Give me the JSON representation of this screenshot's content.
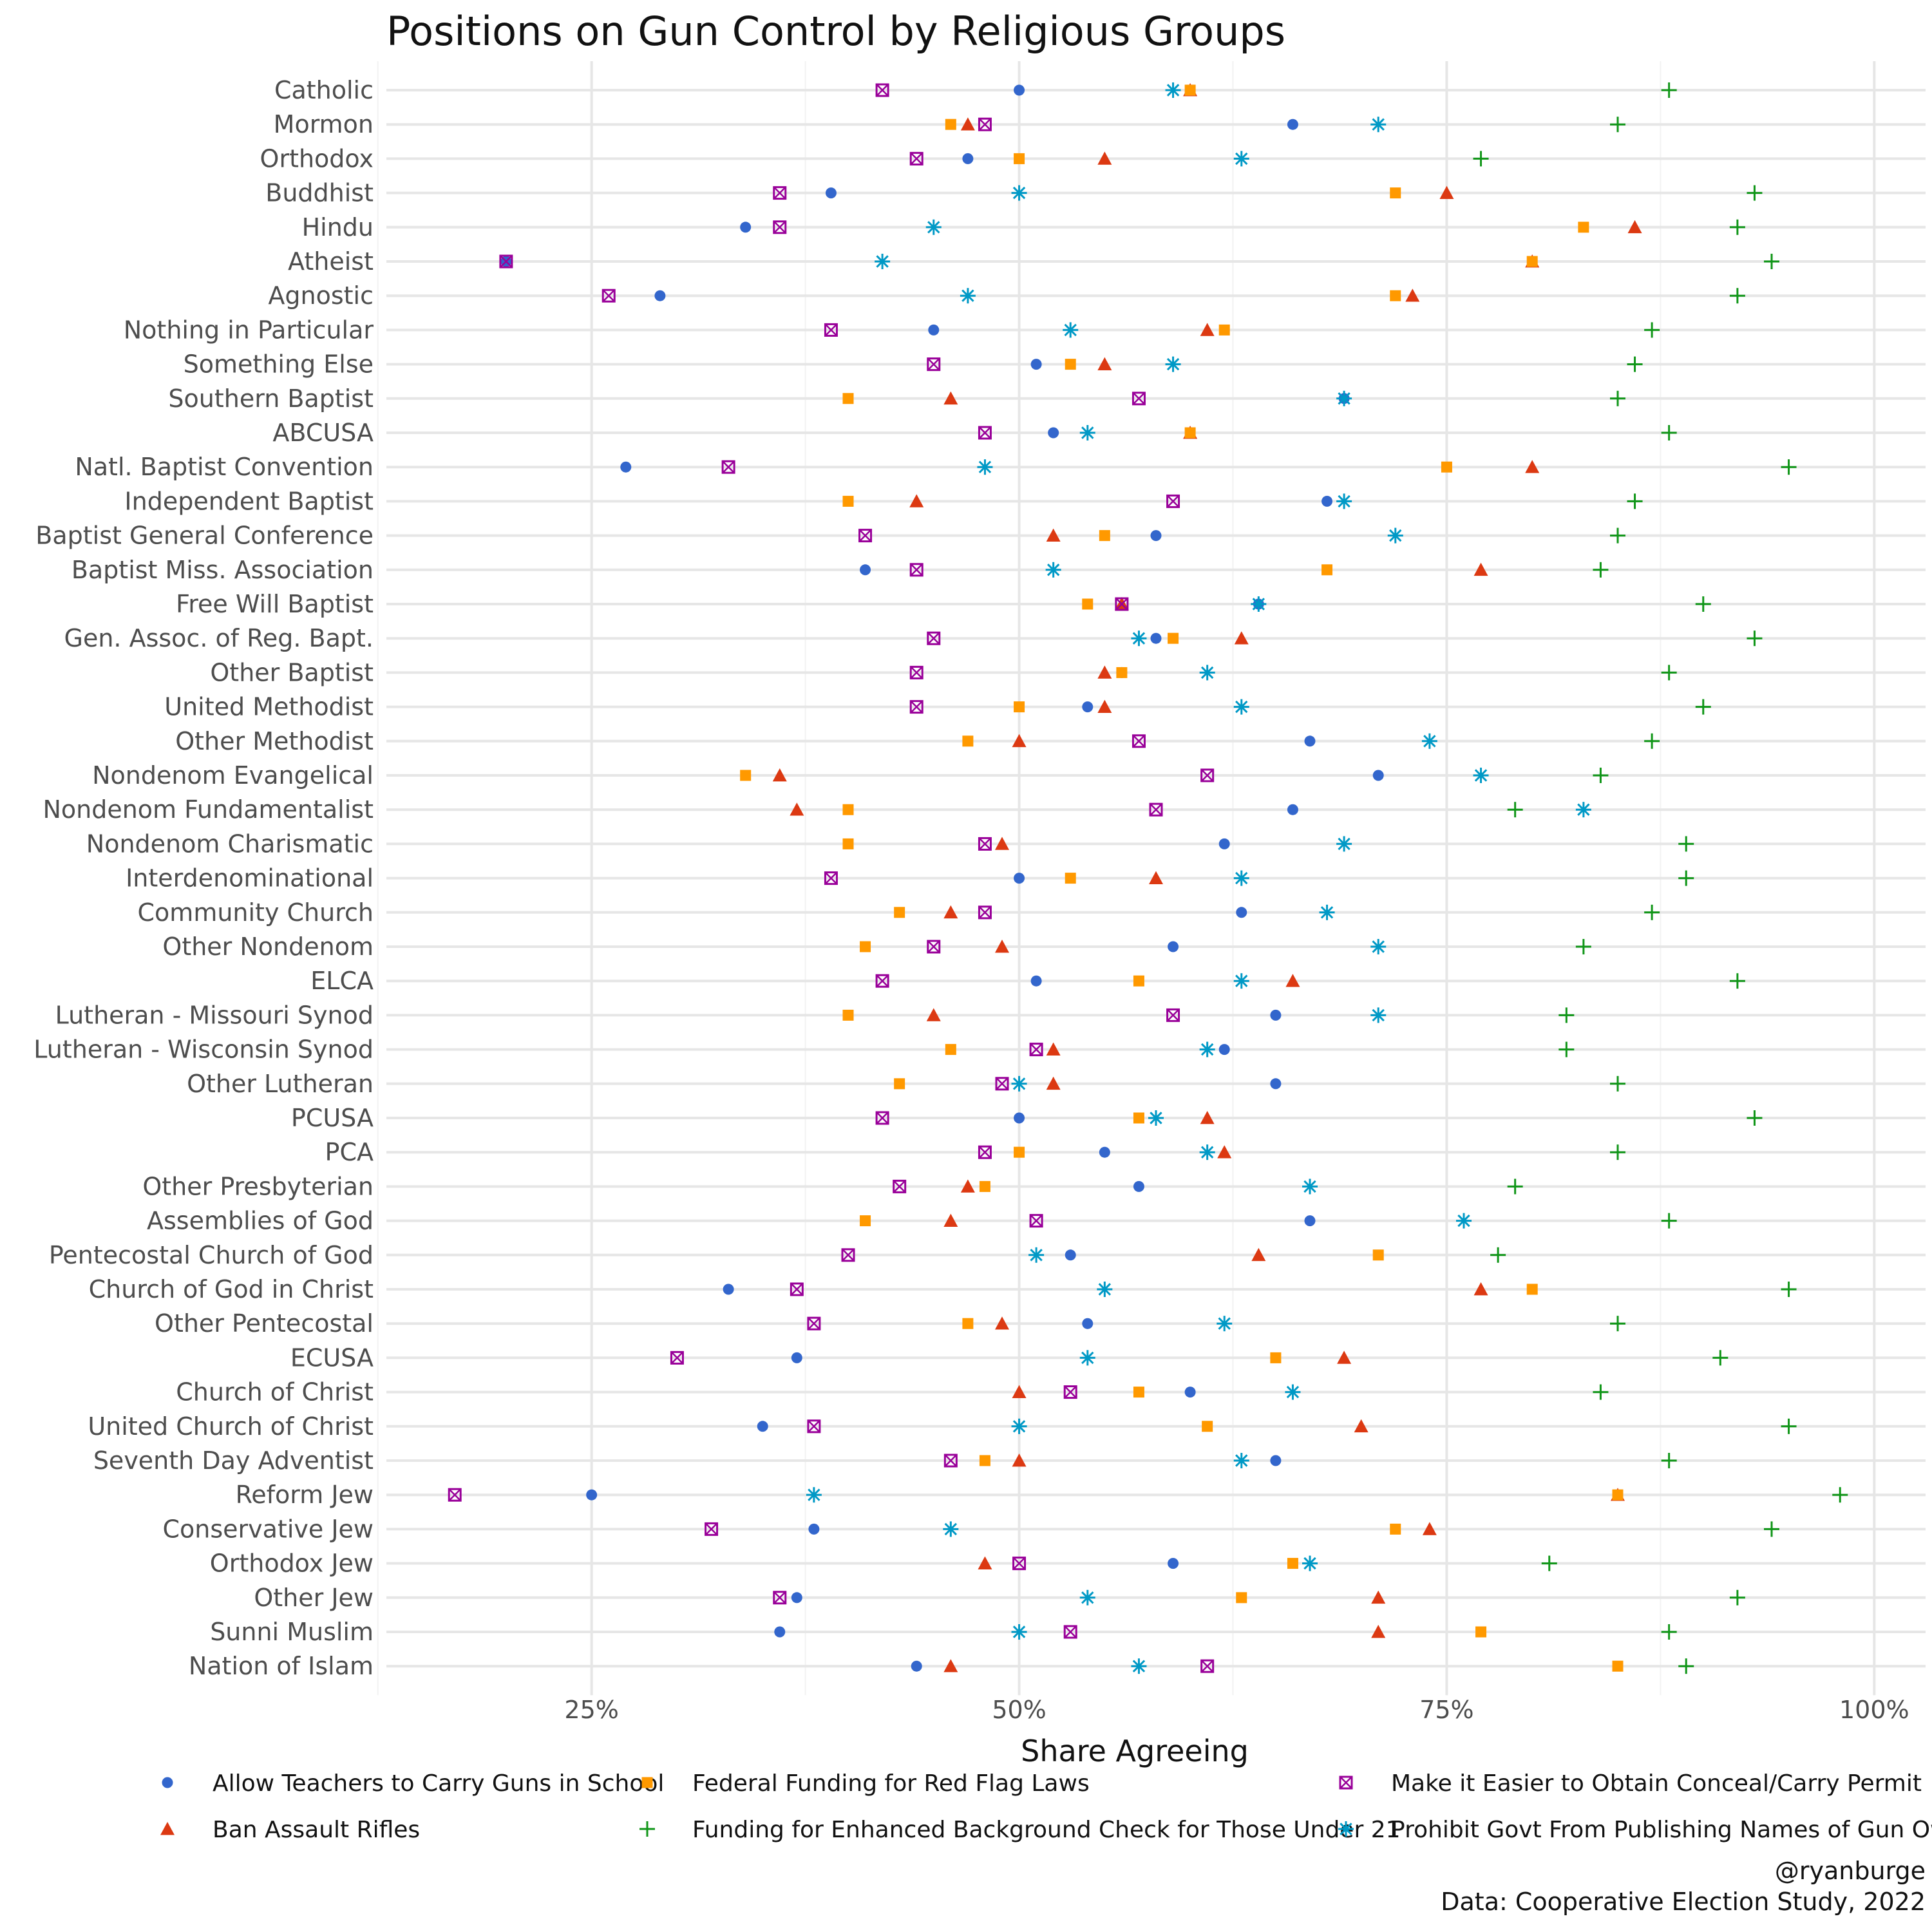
{
  "chart_data": {
    "type": "scatter",
    "title": "Positions on Gun Control by Religious Groups",
    "xlabel": "Share Agreeing",
    "xlim": [
      0.13,
      1.03
    ],
    "x_ticks": [
      0.25,
      0.5,
      0.75,
      1.0
    ],
    "x_tick_labels": [
      "25%",
      "50%",
      "75%",
      "100%"
    ],
    "grid": true,
    "legend_position": "bottom",
    "caption": [
      "@ryanburge",
      "Data: Cooperative Election Study, 2022"
    ],
    "categories": [
      "Catholic",
      "Mormon",
      "Orthodox",
      "Buddhist",
      "Hindu",
      "Atheist",
      "Agnostic",
      "Nothing in Particular",
      "Something Else",
      "Southern Baptist",
      "ABCUSA",
      "Natl. Baptist Convention",
      "Independent Baptist",
      "Baptist General Conference",
      "Baptist Miss. Association",
      "Free Will Baptist",
      "Gen. Assoc. of Reg. Bapt.",
      "Other Baptist",
      "United Methodist",
      "Other Methodist",
      "Nondenom Evangelical",
      "Nondenom Fundamentalist",
      "Nondenom Charismatic",
      "Interdenominational",
      "Community Church",
      "Other Nondenom",
      "ELCA",
      "Lutheran - Missouri Synod",
      "Lutheran - Wisconsin Synod",
      "Other Lutheran",
      "PCUSA",
      "PCA",
      "Other Presbyterian",
      "Assemblies of God",
      "Pentecostal Church of God",
      "Church of God in Christ",
      "Other Pentecostal",
      "ECUSA",
      "Church of Christ",
      "United Church of Christ",
      "Seventh Day Adventist",
      "Reform Jew",
      "Conservative Jew",
      "Orthodox Jew",
      "Other Jew",
      "Sunni Muslim",
      "Nation of Islam"
    ],
    "series": [
      {
        "name": "Allow Teachers to Carry Guns in School",
        "marker": "circle",
        "color": "#3366cc",
        "values": [
          0.5,
          0.66,
          0.47,
          0.39,
          0.34,
          0.2,
          0.29,
          0.45,
          0.51,
          0.69,
          0.52,
          0.27,
          0.68,
          0.58,
          0.41,
          0.64,
          0.58,
          0.56,
          0.54,
          0.67,
          0.71,
          0.66,
          0.62,
          0.5,
          0.63,
          0.59,
          0.51,
          0.65,
          0.62,
          0.65,
          0.5,
          0.55,
          0.57,
          0.67,
          0.53,
          0.33,
          0.54,
          0.37,
          0.6,
          0.35,
          0.65,
          0.25,
          0.38,
          0.59,
          0.37,
          0.36,
          0.44
        ]
      },
      {
        "name": "Ban Assault Rifles",
        "marker": "triangle",
        "color": "#dc3912",
        "values": [
          0.6,
          0.47,
          0.55,
          0.75,
          0.86,
          0.8,
          0.73,
          0.61,
          0.55,
          0.46,
          0.6,
          0.8,
          0.44,
          0.52,
          0.77,
          0.56,
          0.63,
          0.55,
          0.55,
          0.5,
          0.36,
          0.37,
          0.49,
          0.58,
          0.46,
          0.49,
          0.66,
          0.45,
          0.52,
          0.52,
          0.61,
          0.62,
          0.47,
          0.46,
          0.64,
          0.77,
          0.49,
          0.69,
          0.5,
          0.7,
          0.5,
          0.85,
          0.74,
          0.48,
          0.71,
          0.71,
          0.46
        ]
      },
      {
        "name": "Federal Funding for Red Flag Laws",
        "marker": "square",
        "color": "#ff9900",
        "values": [
          0.6,
          0.46,
          0.5,
          0.72,
          0.83,
          0.8,
          0.72,
          0.62,
          0.53,
          0.4,
          0.6,
          0.75,
          0.4,
          0.55,
          0.68,
          0.54,
          0.59,
          0.56,
          0.5,
          0.47,
          0.34,
          0.4,
          0.4,
          0.53,
          0.43,
          0.41,
          0.57,
          0.4,
          0.46,
          0.43,
          0.57,
          0.5,
          0.48,
          0.41,
          0.71,
          0.8,
          0.47,
          0.65,
          0.57,
          0.61,
          0.48,
          0.85,
          0.72,
          0.66,
          0.63,
          0.77,
          0.85
        ]
      },
      {
        "name": "Funding for Enhanced Background Check for Those Under 21",
        "marker": "plus",
        "color": "#109618",
        "values": [
          0.88,
          0.85,
          0.77,
          0.93,
          0.92,
          0.94,
          0.92,
          0.87,
          0.86,
          0.85,
          0.88,
          0.95,
          0.86,
          0.85,
          0.84,
          0.9,
          0.93,
          0.88,
          0.9,
          0.87,
          0.84,
          0.79,
          0.89,
          0.89,
          0.87,
          0.83,
          0.92,
          0.82,
          0.82,
          0.85,
          0.93,
          0.85,
          0.79,
          0.88,
          0.78,
          0.95,
          0.85,
          0.91,
          0.84,
          0.95,
          0.88,
          0.98,
          0.94,
          0.81,
          0.92,
          0.88,
          0.89
        ]
      },
      {
        "name": "Make it Easier to Obtain Conceal/Carry Permit",
        "marker": "boxx",
        "color": "#990099",
        "values": [
          0.42,
          0.48,
          0.44,
          0.36,
          0.36,
          0.2,
          0.26,
          0.39,
          0.45,
          0.57,
          0.48,
          0.33,
          0.59,
          0.41,
          0.44,
          0.56,
          0.45,
          0.44,
          0.44,
          0.57,
          0.61,
          0.58,
          0.48,
          0.39,
          0.48,
          0.45,
          0.42,
          0.59,
          0.51,
          0.49,
          0.42,
          0.48,
          0.43,
          0.51,
          0.4,
          0.37,
          0.38,
          0.3,
          0.53,
          0.38,
          0.46,
          0.17,
          0.32,
          0.5,
          0.36,
          0.53,
          0.61
        ]
      },
      {
        "name": "Prohibit Govt From Publishing Names of Gun Owners",
        "marker": "asterisk",
        "color": "#0099c6",
        "values": [
          0.59,
          0.71,
          0.63,
          0.5,
          0.45,
          0.42,
          0.47,
          0.53,
          0.59,
          0.69,
          0.54,
          0.48,
          0.69,
          0.72,
          0.52,
          0.64,
          0.57,
          0.61,
          0.63,
          0.74,
          0.77,
          0.83,
          0.69,
          0.63,
          0.68,
          0.71,
          0.63,
          0.71,
          0.61,
          0.5,
          0.58,
          0.61,
          0.67,
          0.76,
          0.51,
          0.55,
          0.62,
          0.54,
          0.66,
          0.5,
          0.63,
          0.38,
          0.46,
          0.67,
          0.54,
          0.5,
          0.57
        ]
      }
    ]
  }
}
